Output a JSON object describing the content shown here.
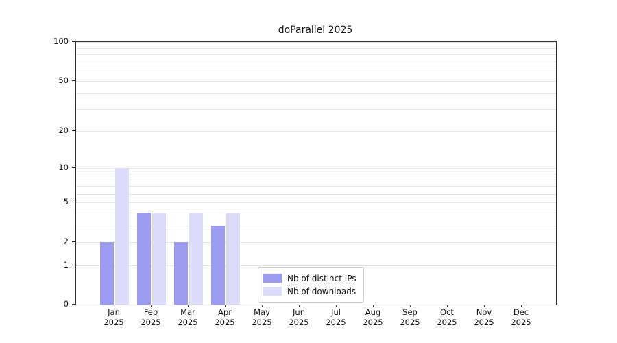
{
  "chart_data": {
    "type": "bar",
    "title": "doParallel 2025",
    "categories": [
      "Jan",
      "Feb",
      "Mar",
      "Apr",
      "May",
      "Jun",
      "Jul",
      "Aug",
      "Sep",
      "Oct",
      "Nov",
      "Dec"
    ],
    "year_label": "2025",
    "series": [
      {
        "name": "Nb of distinct IPs",
        "color": "#9b9bf0",
        "values": [
          2,
          4,
          2,
          3,
          0,
          0,
          0,
          0,
          0,
          0,
          0,
          0
        ]
      },
      {
        "name": "Nb of downloads",
        "color": "#dcdcfa",
        "values": [
          10,
          4,
          4,
          4,
          0,
          0,
          0,
          0,
          0,
          0,
          0,
          0
        ]
      }
    ],
    "y_scale": "log1p",
    "ylim": [
      0,
      100
    ],
    "y_ticks": [
      0,
      1,
      2,
      5,
      10,
      20,
      50,
      100
    ],
    "y_gridlines": [
      1,
      2,
      3,
      4,
      5,
      6,
      7,
      8,
      9,
      10,
      20,
      30,
      40,
      50,
      60,
      70,
      80,
      90,
      100
    ],
    "xlabel": "",
    "ylabel": "",
    "grid": "horizontal",
    "legend_position": "lower-center-left"
  }
}
